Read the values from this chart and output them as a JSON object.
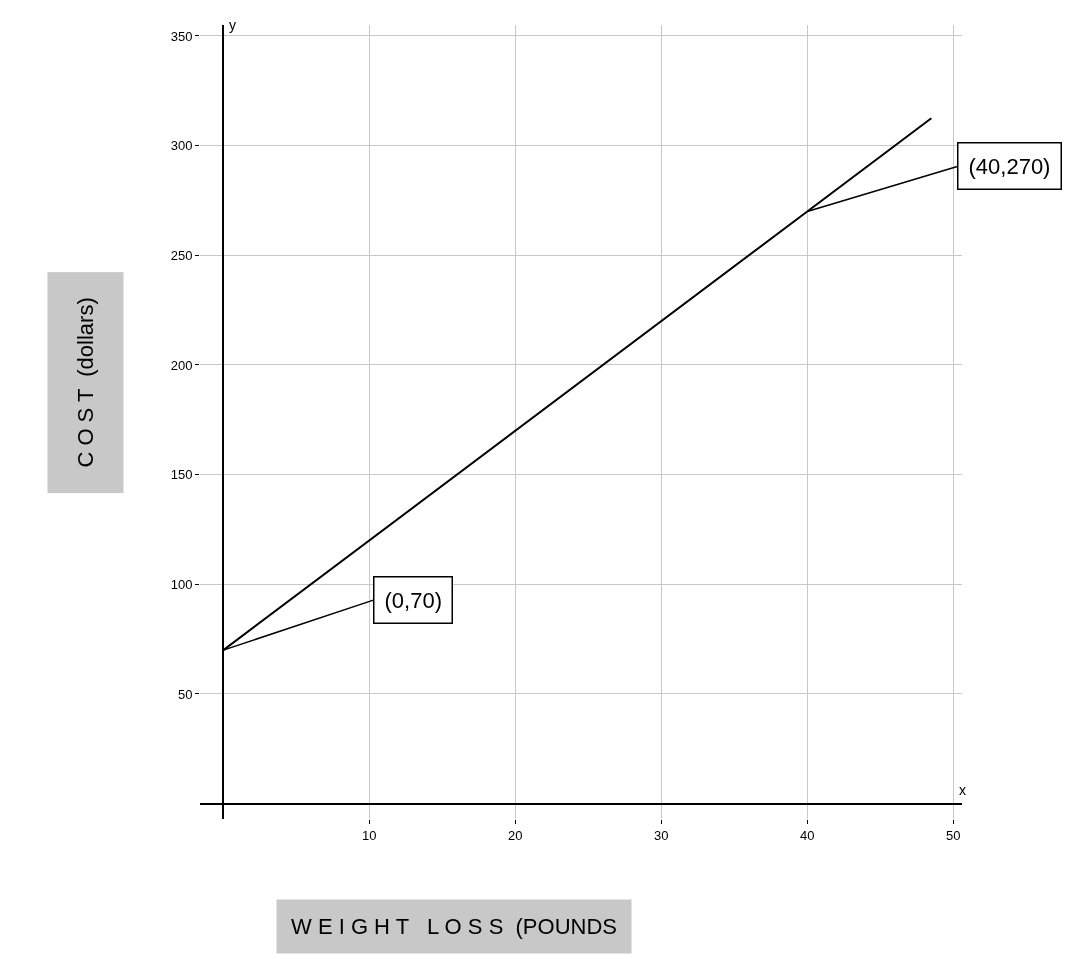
{
  "chart_data": {
    "type": "line",
    "xlabel": "W E I G H T   L O S S  (POUNDS",
    "ylabel": "C O S T  (dollars)",
    "x": [
      0,
      40,
      48.5
    ],
    "series": [
      {
        "color": "#000000",
        "values": [
          70,
          270,
          312.5
        ]
      }
    ],
    "xlim": [
      -1.6,
      50.6
    ],
    "ylim": [
      -7,
      355
    ],
    "xticks": [
      10,
      20,
      30,
      40,
      50
    ],
    "yticks": [
      50,
      100,
      150,
      200,
      250,
      300,
      350
    ],
    "grid": true,
    "marker": "none",
    "line_style": "solid",
    "annotations": [
      {
        "text": "(0,70)",
        "x": 0,
        "y": 70
      },
      {
        "text": "(40,270)",
        "x": 40,
        "y": 270
      },
      "x",
      "y"
    ]
  }
}
